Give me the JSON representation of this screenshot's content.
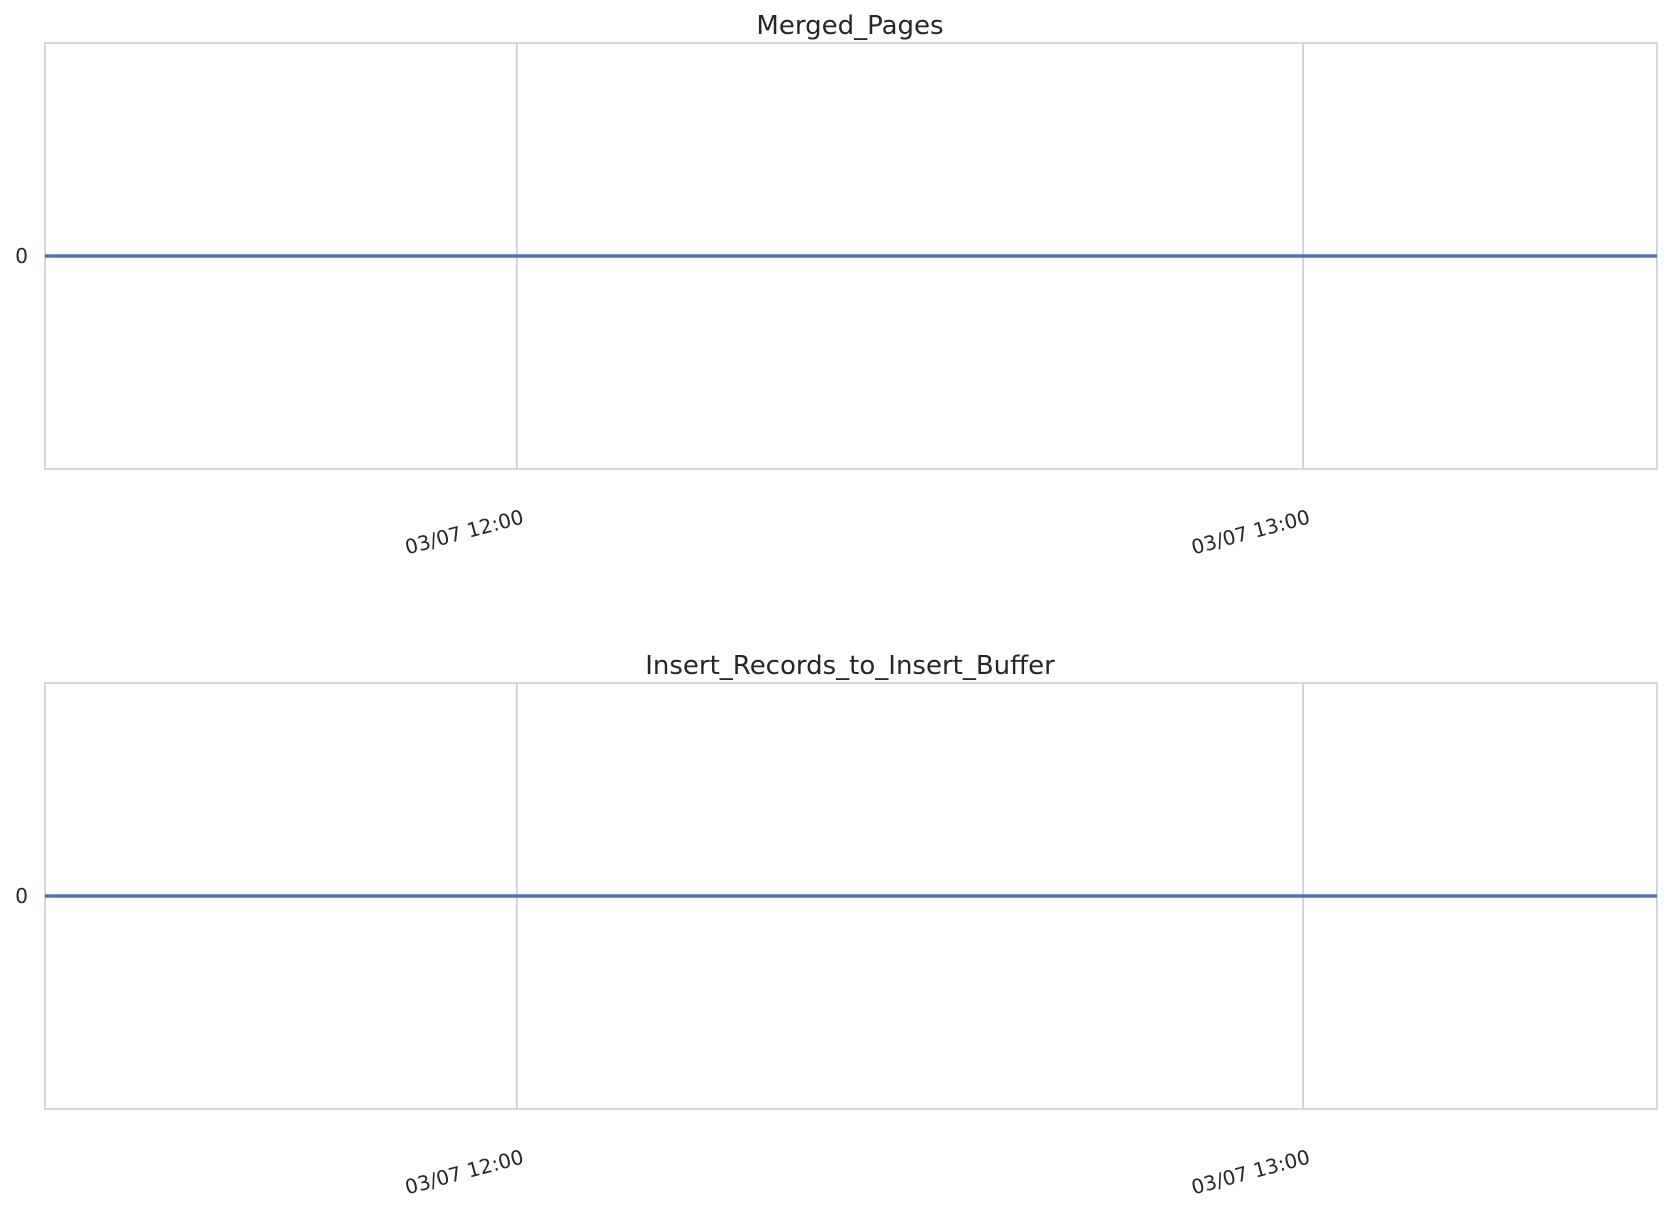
{
  "chart_data": [
    {
      "type": "line",
      "title": "Merged_Pages",
      "xlabel": "",
      "ylabel": "",
      "x_tick_labels": [
        "03/07 12:00",
        "03/07 13:00"
      ],
      "x_tick_values": [
        "2016-03-07 12:00",
        "2016-03-07 13:00"
      ],
      "xlim": [
        "2016-03-07 11:24",
        "2016-03-07 13:27"
      ],
      "y_tick_labels": [
        "0"
      ],
      "y_tick_values": [
        0
      ],
      "ylim": [
        -1,
        1
      ],
      "grid": "vertical",
      "series": [
        {
          "x": [
            "2016-03-07 11:24",
            "2016-03-07 13:27"
          ],
          "values": [
            0,
            0
          ],
          "color": "#4c72b0"
        }
      ]
    },
    {
      "type": "line",
      "title": "Insert_Records_to_Insert_Buffer",
      "xlabel": "",
      "ylabel": "",
      "x_tick_labels": [
        "03/07 12:00",
        "03/07 13:00"
      ],
      "x_tick_values": [
        "2016-03-07 12:00",
        "2016-03-07 13:00"
      ],
      "xlim": [
        "2016-03-07 11:24",
        "2016-03-07 13:27"
      ],
      "y_tick_labels": [
        "0"
      ],
      "y_tick_values": [
        0
      ],
      "ylim": [
        -1,
        1
      ],
      "grid": "vertical",
      "series": [
        {
          "x": [
            "2016-03-07 11:24",
            "2016-03-07 13:27"
          ],
          "values": [
            0,
            0
          ],
          "color": "#4c72b0"
        }
      ]
    }
  ]
}
